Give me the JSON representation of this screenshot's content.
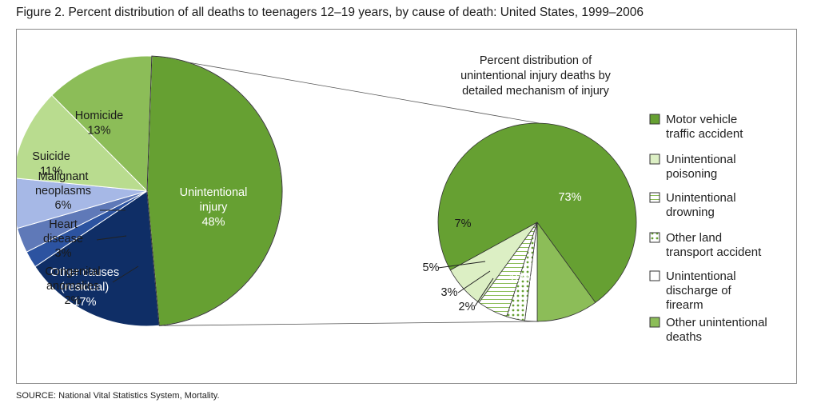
{
  "title": "Figure 2. Percent distribution of all deaths to teenagers 12–19 years, by cause of death: United States, 1999–2006",
  "source": "SOURCE: National Vital Statistics System, Mortality.",
  "chart_data": [
    {
      "type": "pie",
      "title": "",
      "slices": [
        {
          "label": [
            "Unintentional",
            "injury"
          ],
          "value": 48,
          "display": "48%",
          "color": "#66a032"
        },
        {
          "label": [
            "Other causes",
            "(residual)"
          ],
          "value": 17,
          "display": "17%",
          "color": "#0f2e66"
        },
        {
          "label": [
            "Congenital",
            "anomalies"
          ],
          "value": 2,
          "display": "2%",
          "color": "#2c53a0"
        },
        {
          "label": [
            "Heart",
            "disease"
          ],
          "value": 3,
          "display": "3%",
          "color": "#5f79b8"
        },
        {
          "label": [
            "Malignant",
            "neoplasms"
          ],
          "value": 6,
          "display": "6%",
          "color": "#a6b8e6"
        },
        {
          "label": [
            "Suicide"
          ],
          "value": 11,
          "display": "11%",
          "color": "#b9dc8f"
        },
        {
          "label": [
            "Homicide"
          ],
          "value": 13,
          "display": "13%",
          "color": "#8cbd58"
        }
      ],
      "colors": {
        "outline": "#ffffff"
      }
    },
    {
      "type": "pie",
      "title": [
        "Percent distribution of",
        "unintentional injury deaths by",
        "detailed mechanism of injury"
      ],
      "slices": [
        {
          "label": "Motor vehicle traffic accident",
          "value": 73,
          "display": "73%",
          "color": "#66a032",
          "pattern": "solid"
        },
        {
          "label": "Other unintentional deaths",
          "value": 10,
          "display": "10%",
          "color": "#8cbd58",
          "pattern": "solid"
        },
        {
          "label": "Unintentional discharge of firearm",
          "value": 2,
          "display": "2%",
          "color": "#ffffff",
          "pattern": "solid"
        },
        {
          "label": "Other land transport accident",
          "value": 3,
          "display": "3%",
          "color": "#ffffff",
          "pattern": "dots"
        },
        {
          "label": "Unintentional drowning",
          "value": 5,
          "display": "5%",
          "color": "#ffffff",
          "pattern": "hlines"
        },
        {
          "label": "Unintentional poisoning",
          "value": 7,
          "display": "7%",
          "color": "#dcefc4",
          "pattern": "solid"
        }
      ],
      "legend": {
        "position": "right",
        "items": [
          {
            "lines": [
              "Motor vehicle",
              "traffic accident"
            ],
            "color": "#66a032",
            "pattern": "solid"
          },
          {
            "lines": [
              "Unintentional",
              "poisoning"
            ],
            "color": "#dcefc4",
            "pattern": "solid"
          },
          {
            "lines": [
              "Unintentional",
              "drowning"
            ],
            "color": "#ffffff",
            "pattern": "hlines"
          },
          {
            "lines": [
              "Other land",
              "transport accident"
            ],
            "color": "#ffffff",
            "pattern": "dots"
          },
          {
            "lines": [
              "Unintentional",
              "discharge of",
              "firearm"
            ],
            "color": "#ffffff",
            "pattern": "solid"
          },
          {
            "lines": [
              "Other unintentional",
              "deaths"
            ],
            "color": "#8cbd58",
            "pattern": "solid"
          }
        ]
      }
    }
  ]
}
